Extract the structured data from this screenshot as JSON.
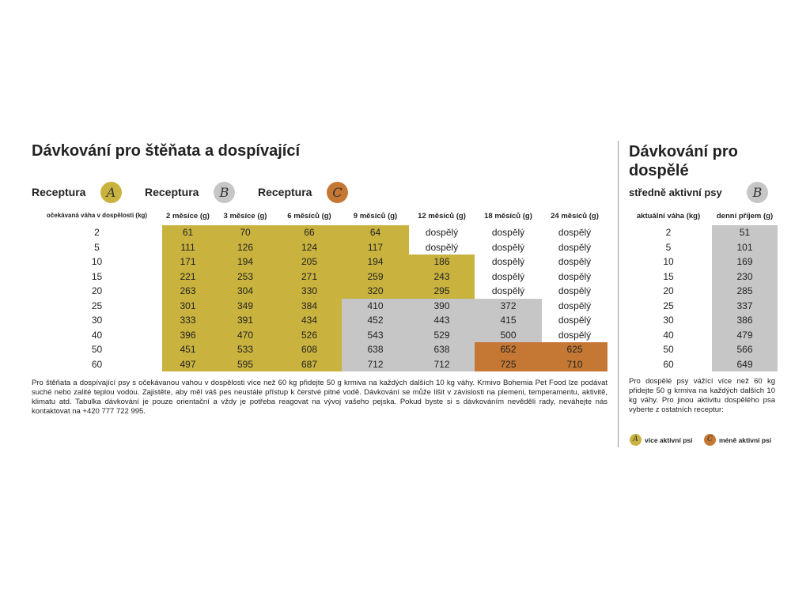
{
  "colors": {
    "A": "#c9b33e",
    "B": "#c6c6c6",
    "C": "#c57833"
  },
  "puppy": {
    "title": "Dávkování pro štěňata a dospívající",
    "recipes": [
      {
        "label": "Receptura",
        "letter": "A",
        "color": "#c9b33e"
      },
      {
        "label": "Receptura",
        "letter": "B",
        "color": "#c6c6c6"
      },
      {
        "label": "Receptura",
        "letter": "C",
        "color": "#c57833"
      }
    ],
    "table": {
      "header": [
        "očekávaná váha v dospělosti (kg)",
        "2 měsíce (g)",
        "3 měsíce (g)",
        "6 měsíců (g)",
        "9 měsíců (g)",
        "12 měsíců (g)",
        "18 měsíců (g)",
        "24 měsíců (g)"
      ],
      "rows": [
        [
          2,
          61,
          70,
          66,
          64,
          "dospělý",
          "dospělý",
          "dospělý"
        ],
        [
          5,
          111,
          126,
          124,
          117,
          "dospělý",
          "dospělý",
          "dospělý"
        ],
        [
          10,
          171,
          194,
          205,
          194,
          186,
          "dospělý",
          "dospělý"
        ],
        [
          15,
          221,
          253,
          271,
          259,
          243,
          "dospělý",
          "dospělý"
        ],
        [
          20,
          263,
          304,
          330,
          320,
          295,
          "dospělý",
          "dospělý"
        ],
        [
          25,
          301,
          349,
          384,
          410,
          390,
          372,
          "dospělý"
        ],
        [
          30,
          333,
          391,
          434,
          452,
          443,
          415,
          "dospělý"
        ],
        [
          40,
          396,
          470,
          526,
          543,
          529,
          500,
          "dospělý"
        ],
        [
          50,
          451,
          533,
          608,
          638,
          638,
          652,
          625
        ],
        [
          60,
          497,
          595,
          687,
          712,
          712,
          725,
          710
        ]
      ],
      "fills": [
        [
          null,
          "#c9b33e",
          "#c9b33e",
          "#c9b33e",
          "#c9b33e",
          null,
          null,
          null
        ],
        [
          null,
          "#c9b33e",
          "#c9b33e",
          "#c9b33e",
          "#c9b33e",
          null,
          null,
          null
        ],
        [
          null,
          "#c9b33e",
          "#c9b33e",
          "#c9b33e",
          "#c9b33e",
          "#c9b33e",
          null,
          null
        ],
        [
          null,
          "#c9b33e",
          "#c9b33e",
          "#c9b33e",
          "#c9b33e",
          "#c9b33e",
          null,
          null
        ],
        [
          null,
          "#c9b33e",
          "#c9b33e",
          "#c9b33e",
          "#c9b33e",
          "#c9b33e",
          null,
          null
        ],
        [
          null,
          "#c9b33e",
          "#c9b33e",
          "#c9b33e",
          "#c6c6c6",
          "#c6c6c6",
          "#c6c6c6",
          null
        ],
        [
          null,
          "#c9b33e",
          "#c9b33e",
          "#c9b33e",
          "#c6c6c6",
          "#c6c6c6",
          "#c6c6c6",
          null
        ],
        [
          null,
          "#c9b33e",
          "#c9b33e",
          "#c9b33e",
          "#c6c6c6",
          "#c6c6c6",
          "#c6c6c6",
          null
        ],
        [
          null,
          "#c9b33e",
          "#c9b33e",
          "#c9b33e",
          "#c6c6c6",
          "#c6c6c6",
          "#c57833",
          "#c57833"
        ],
        [
          null,
          "#c9b33e",
          "#c9b33e",
          "#c9b33e",
          "#c6c6c6",
          "#c6c6c6",
          "#c57833",
          "#c57833"
        ]
      ]
    },
    "note": "Pro štěňata a dospívající psy s očekávanou vahou v dospělosti více než 60 kg přidejte 50 g krmiva na každých dalších 10 kg váhy. Krmivo Bohemia Pet Food lze podávat suché nebo zalité teplou vodou. Zajistěte, aby měl váš pes neustále přístup k čerstvé pitné vodě. Dávkování se může lišit v závislosti na plemeni, temperamentu, aktivitě, klimatu atd. Tabulka dávkování je pouze orientační a vždy je potřeba reagovat na vývoj vašeho pejska. Pokud byste si s dávkováním nevěděli rady, neváhejte nás kontaktovat na +420 777 722 995."
  },
  "adult": {
    "title": "Dávkování pro dospělé",
    "subtitle": "středně aktivní psy",
    "letter": "B",
    "color": "#c6c6c6",
    "table": {
      "header": [
        "aktuální váha (kg)",
        "denní příjem (g)"
      ],
      "rows": [
        [
          2,
          51
        ],
        [
          5,
          101
        ],
        [
          10,
          169
        ],
        [
          15,
          230
        ],
        [
          20,
          285
        ],
        [
          25,
          337
        ],
        [
          30,
          386
        ],
        [
          40,
          479
        ],
        [
          50,
          566
        ],
        [
          60,
          649
        ]
      ]
    },
    "note": "Pro dospělé psy vážící více než 60 kg přidejte 50 g krmiva na každých dalších 10 kg váhy. Pro jinou aktivitu dospělého psa vyberte z ostatních receptur:",
    "legend": [
      {
        "letter": "A",
        "label": "více aktivní psi",
        "color": "#c9b33e"
      },
      {
        "letter": "C",
        "label": "méně aktivní psi",
        "color": "#c57833"
      }
    ]
  }
}
